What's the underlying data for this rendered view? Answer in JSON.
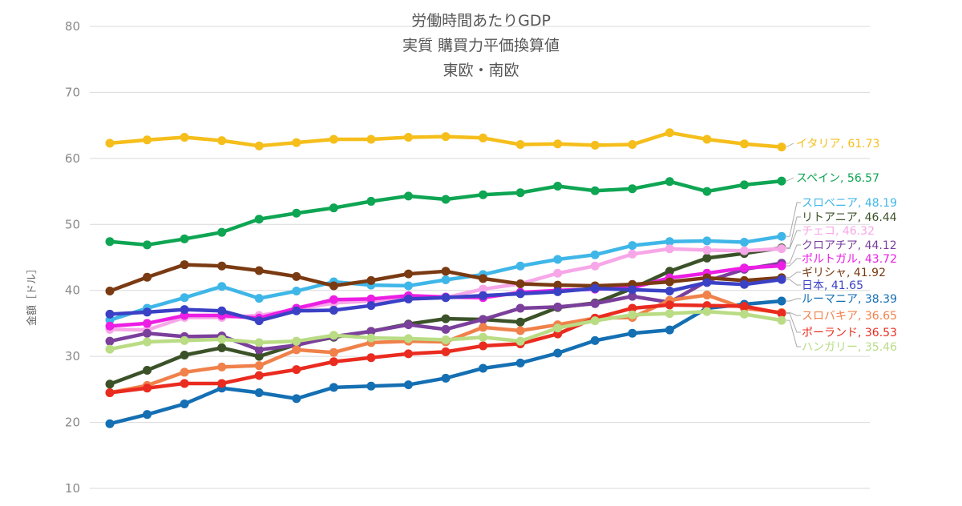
{
  "chart_data": {
    "type": "line",
    "title": [
      "労働時間あたりGDP",
      "実質 購買力平価換算値",
      "東欧・南欧"
    ],
    "ylabel": "金額［ドル］",
    "xlabel": "",
    "ylim": [
      10,
      80
    ],
    "yticks": [
      10,
      20,
      30,
      40,
      50,
      60,
      70,
      80
    ],
    "grid": true,
    "legend": "end-labels",
    "x": [
      1,
      2,
      3,
      4,
      5,
      6,
      7,
      8,
      9,
      10,
      11,
      12,
      13,
      14,
      15,
      16,
      17,
      18,
      19
    ],
    "series": [
      {
        "name": "イタリア",
        "label": "イタリア, 61.73",
        "color": "#f5be1b",
        "values": [
          62.3,
          62.8,
          63.2,
          62.7,
          61.9,
          62.4,
          62.9,
          62.9,
          63.2,
          63.3,
          63.1,
          62.1,
          62.2,
          62.0,
          62.1,
          63.9,
          62.9,
          62.2,
          61.73
        ]
      },
      {
        "name": "スペイン",
        "label": "スペイン, 56.57",
        "color": "#0ea553",
        "values": [
          47.4,
          46.9,
          47.8,
          48.8,
          50.8,
          51.7,
          52.5,
          53.5,
          54.3,
          53.8,
          54.5,
          54.8,
          55.8,
          55.1,
          55.4,
          56.5,
          55.0,
          56.0,
          56.57
        ]
      },
      {
        "name": "スロベニア",
        "label": "スロベニア, 48.19",
        "color": "#3fb6e8",
        "values": [
          35.5,
          37.3,
          38.9,
          40.6,
          38.8,
          39.9,
          41.3,
          40.8,
          40.7,
          41.6,
          42.4,
          43.7,
          44.7,
          45.4,
          46.8,
          47.4,
          47.5,
          47.3,
          48.19
        ]
      },
      {
        "name": "リトアニア",
        "label": "リトアニア, 46.44",
        "color": "#3b5228",
        "values": [
          25.8,
          27.9,
          30.2,
          31.3,
          30.0,
          31.8,
          32.9,
          33.8,
          34.9,
          35.7,
          35.6,
          35.2,
          37.4,
          38.1,
          40.3,
          42.9,
          44.9,
          45.6,
          46.44
        ]
      },
      {
        "name": "チェコ",
        "label": "チェコ, 46.32",
        "color": "#f7a7e8",
        "values": [
          34.1,
          34.0,
          35.9,
          35.9,
          36.2,
          37.1,
          38.1,
          38.4,
          38.7,
          38.9,
          40.2,
          41.0,
          42.6,
          43.7,
          45.5,
          46.3,
          46.1,
          46.0,
          46.32
        ]
      },
      {
        "name": "クロアチア",
        "label": "クロアチア, 44.12",
        "color": "#7b3f9c",
        "values": [
          32.3,
          33.5,
          33.0,
          33.1,
          31.0,
          31.7,
          33.0,
          33.8,
          34.8,
          34.1,
          35.6,
          37.3,
          37.5,
          38.0,
          39.1,
          38.2,
          41.4,
          43.2,
          44.12
        ]
      },
      {
        "name": "ポルトガル",
        "label": "ポルトガル, 43.72",
        "color": "#ec1ee4",
        "values": [
          34.6,
          35.0,
          36.2,
          36.2,
          35.8,
          37.3,
          38.6,
          38.7,
          39.2,
          39.0,
          38.9,
          39.7,
          40.0,
          40.2,
          40.4,
          41.9,
          42.6,
          43.4,
          43.72
        ]
      },
      {
        "name": "ギリシャ",
        "label": "ギリシャ, 41.92",
        "color": "#7a3a12",
        "values": [
          39.9,
          42.0,
          43.9,
          43.7,
          43.0,
          42.1,
          40.7,
          41.5,
          42.5,
          42.9,
          41.8,
          41.0,
          40.8,
          40.7,
          40.9,
          41.3,
          41.9,
          41.5,
          41.92
        ]
      },
      {
        "name": "日本",
        "label": "日本, 41.65",
        "color": "#3b41c5",
        "values": [
          36.4,
          36.7,
          37.1,
          36.9,
          35.4,
          36.9,
          37.0,
          37.7,
          38.7,
          38.9,
          39.2,
          39.5,
          39.8,
          40.3,
          40.1,
          39.9,
          41.2,
          40.9,
          41.65
        ]
      },
      {
        "name": "ルーマニア",
        "label": "ルーマニア, 38.39",
        "color": "#146fb3",
        "values": [
          19.8,
          21.2,
          22.8,
          25.2,
          24.5,
          23.6,
          25.3,
          25.5,
          25.7,
          26.7,
          28.2,
          29.0,
          30.5,
          32.4,
          33.5,
          34.0,
          37.3,
          37.9,
          38.39
        ]
      },
      {
        "name": "スロバキア",
        "label": "スロバキア, 36.65",
        "color": "#f0814a",
        "values": [
          24.5,
          25.6,
          27.6,
          28.4,
          28.6,
          31.0,
          30.6,
          32.1,
          32.3,
          32.2,
          34.4,
          33.9,
          34.8,
          35.8,
          35.9,
          38.5,
          39.3,
          37.3,
          36.65
        ]
      },
      {
        "name": "ポーランド",
        "label": "ポーランド, 36.53",
        "color": "#ea2b1f",
        "values": [
          24.5,
          25.2,
          25.9,
          25.9,
          27.1,
          28.0,
          29.2,
          29.8,
          30.4,
          30.7,
          31.6,
          31.9,
          33.4,
          35.8,
          37.3,
          37.8,
          37.7,
          37.6,
          36.53
        ]
      },
      {
        "name": "ハンガリー",
        "label": "ハンガリー, 35.46",
        "color": "#b9dc84",
        "values": [
          31.1,
          32.2,
          32.4,
          32.6,
          32.1,
          32.3,
          33.2,
          32.8,
          32.7,
          32.5,
          32.9,
          32.3,
          34.3,
          35.4,
          36.3,
          36.5,
          36.8,
          36.4,
          35.46
        ]
      }
    ]
  }
}
